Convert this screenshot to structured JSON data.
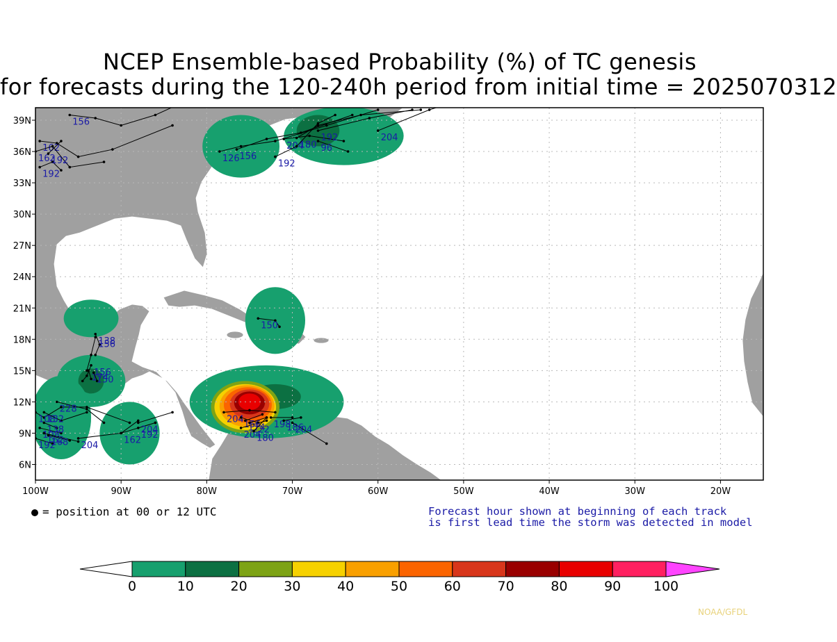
{
  "title": {
    "line1": "NCEP Ensemble-based Probability (%) of TC genesis",
    "line2": "for forecasts during the 120-240h period from initial time = 2025070312"
  },
  "map": {
    "lon_range": [
      -100,
      -15
    ],
    "lat_range": [
      4.5,
      40.2
    ],
    "lon_ticks": [
      "100W",
      "90W",
      "80W",
      "70W",
      "60W",
      "50W",
      "40W",
      "30W",
      "20W"
    ],
    "lat_ticks": [
      "6N",
      "9N",
      "12N",
      "15N",
      "18N",
      "21N",
      "24N",
      "27N",
      "30N",
      "33N",
      "36N",
      "39N"
    ],
    "colors": {
      "land": "#a0a0a0",
      "ocean": "#ffffff",
      "gridline": "#b8b8b8",
      "track": "#000000",
      "track_label": "#1a1aa6"
    }
  },
  "probability_regions": [
    {
      "level": 10,
      "color": "#17a06e",
      "lon": -76,
      "lat": 36.5,
      "rx": 4.5,
      "ry": 3
    },
    {
      "level": 10,
      "color": "#17a06e",
      "lon": -64,
      "lat": 37.5,
      "rx": 7,
      "ry": 2.8
    },
    {
      "level": 20,
      "color": "#0c7042",
      "lon": -67,
      "lat": 38,
      "rx": 2.5,
      "ry": 1.5
    },
    {
      "level": 10,
      "color": "#17a06e",
      "lon": -72,
      "lat": 19.8,
      "rx": 3.5,
      "ry": 3.2
    },
    {
      "level": 10,
      "color": "#17a06e",
      "lon": -93.5,
      "lat": 20,
      "rx": 3.2,
      "ry": 1.8
    },
    {
      "level": 10,
      "color": "#17a06e",
      "lon": -93.5,
      "lat": 14,
      "rx": 4,
      "ry": 2.5
    },
    {
      "level": 20,
      "color": "#0c7042",
      "lon": -93.5,
      "lat": 14,
      "rx": 1.5,
      "ry": 1.2
    },
    {
      "level": 10,
      "color": "#17a06e",
      "lon": -97,
      "lat": 10.5,
      "rx": 3.5,
      "ry": 4
    },
    {
      "level": 10,
      "color": "#17a06e",
      "lon": -89,
      "lat": 9,
      "rx": 3.5,
      "ry": 3
    },
    {
      "level": 10,
      "color": "#17a06e",
      "lon": -73,
      "lat": 12,
      "rx": 9,
      "ry": 3.5
    },
    {
      "level": 20,
      "color": "#0c7042",
      "lon": -72,
      "lat": 12.5,
      "rx": 3,
      "ry": 1.2
    },
    {
      "level": 30,
      "color": "#7da315",
      "lon": -75.5,
      "lat": 11.5,
      "rx": 4,
      "ry": 2.5
    },
    {
      "level": 40,
      "color": "#f6d100",
      "lon": -75.5,
      "lat": 11.5,
      "rx": 3.6,
      "ry": 2.2
    },
    {
      "level": 50,
      "color": "#f9a000",
      "lon": -75.3,
      "lat": 11.6,
      "rx": 3.2,
      "ry": 2
    },
    {
      "level": 60,
      "color": "#fb6400",
      "lon": -75.2,
      "lat": 11.7,
      "rx": 2.8,
      "ry": 1.7
    },
    {
      "level": 70,
      "color": "#d8361b",
      "lon": -75,
      "lat": 11.8,
      "rx": 2.3,
      "ry": 1.4
    },
    {
      "level": 80,
      "color": "#990000",
      "lon": -75,
      "lat": 11.9,
      "rx": 1.8,
      "ry": 1.1
    },
    {
      "level": 90,
      "color": "#e80000",
      "lon": -75,
      "lat": 12,
      "rx": 1.3,
      "ry": 0.8
    }
  ],
  "tracks": [
    {
      "label": "156",
      "points": [
        [
          -96,
          39.5
        ],
        [
          -93,
          39.2
        ],
        [
          -90,
          38.5
        ],
        [
          -86,
          39.5
        ],
        [
          -82,
          41
        ]
      ]
    },
    {
      "label": "162",
      "points": [
        [
          -99.5,
          37
        ],
        [
          -97.5,
          36.8
        ],
        [
          -95,
          35.5
        ],
        [
          -91,
          36.2
        ],
        [
          -84,
          38.5
        ]
      ]
    },
    {
      "label": "162",
      "points": [
        [
          -100,
          36
        ],
        [
          -98,
          36.5
        ],
        [
          -96,
          34.5
        ],
        [
          -92,
          35
        ]
      ]
    },
    {
      "label": "192",
      "points": [
        [
          -99.5,
          34.5
        ],
        [
          -98,
          35
        ],
        [
          -97,
          34.2
        ]
      ]
    },
    {
      "label": "192",
      "points": [
        [
          -98.5,
          35.8
        ],
        [
          -97,
          37
        ]
      ]
    },
    {
      "label": "126",
      "points": [
        [
          -78.5,
          36
        ],
        [
          -76,
          36.5
        ],
        [
          -72,
          37
        ],
        [
          -66,
          38.5
        ],
        [
          -60,
          40
        ]
      ]
    },
    {
      "label": "156",
      "points": [
        [
          -76.5,
          36.2
        ],
        [
          -73,
          37.2
        ],
        [
          -69,
          37.8
        ],
        [
          -63,
          39.5
        ]
      ]
    },
    {
      "label": "204",
      "points": [
        [
          -71,
          37.2
        ],
        [
          -68,
          37.5
        ],
        [
          -64,
          37
        ]
      ]
    },
    {
      "label": "180",
      "points": [
        [
          -69.5,
          37.3
        ],
        [
          -67,
          38.5
        ],
        [
          -62,
          39.5
        ],
        [
          -55,
          40
        ]
      ]
    },
    {
      "label": "96",
      "points": [
        [
          -67,
          37
        ],
        [
          -63.5,
          36
        ]
      ]
    },
    {
      "label": "192",
      "points": [
        [
          -72,
          35.5
        ],
        [
          -69.5,
          36.5
        ],
        [
          -67,
          38.7
        ],
        [
          -65,
          39.5
        ]
      ]
    },
    {
      "label": "192",
      "points": [
        [
          -67,
          38
        ],
        [
          -61,
          39.2
        ],
        [
          -56,
          40
        ]
      ]
    },
    {
      "label": "204",
      "points": [
        [
          -60,
          38
        ],
        [
          -54,
          40
        ],
        [
          -50,
          41
        ]
      ]
    },
    {
      "label": "150",
      "points": [
        [
          -74,
          20
        ],
        [
          -72,
          19.8
        ],
        [
          -71.5,
          19.2
        ]
      ]
    },
    {
      "label": "138",
      "points": [
        [
          -93,
          18.5
        ],
        [
          -92.5,
          17.5
        ],
        [
          -93,
          16.5
        ]
      ]
    },
    {
      "label": "156",
      "points": [
        [
          -93,
          18.2
        ],
        [
          -93.5,
          16.5
        ],
        [
          -94,
          15
        ]
      ]
    },
    {
      "label": "156",
      "points": [
        [
          -93.5,
          15.5
        ],
        [
          -94,
          14.5
        ],
        [
          -94.5,
          14
        ]
      ]
    },
    {
      "label": "174",
      "points": [
        [
          -93.8,
          15
        ],
        [
          -93.5,
          14.2
        ]
      ]
    },
    {
      "label": "150",
      "points": [
        [
          -93.2,
          14.8
        ],
        [
          -92.8,
          14
        ]
      ]
    },
    {
      "label": "108",
      "points": [
        [
          -100,
          11
        ],
        [
          -99,
          10.5
        ],
        [
          -97,
          11.5
        ],
        [
          -94,
          11.5
        ],
        [
          -89,
          10
        ]
      ]
    },
    {
      "label": "132",
      "points": [
        [
          -99,
          11
        ],
        [
          -97,
          10.2
        ],
        [
          -94,
          11
        ]
      ]
    },
    {
      "label": "228",
      "points": [
        [
          -97.5,
          12
        ],
        [
          -94,
          11.3
        ],
        [
          -92,
          10
        ]
      ]
    },
    {
      "label": "108",
      "points": [
        [
          -99.5,
          9.5
        ],
        [
          -97,
          9
        ]
      ]
    },
    {
      "label": "138",
      "points": [
        [
          -99,
          10
        ],
        [
          -97.5,
          9.5
        ]
      ]
    },
    {
      "label": "162",
      "points": [
        [
          -99,
          9
        ],
        [
          -95,
          8.2
        ]
      ]
    },
    {
      "label": "192",
      "points": [
        [
          -100,
          8.5
        ],
        [
          -98,
          8
        ]
      ]
    },
    {
      "label": "168",
      "points": [
        [
          -98.5,
          8.8
        ],
        [
          -96,
          8.3
        ]
      ]
    },
    {
      "label": "204",
      "points": [
        [
          -95,
          8.5
        ],
        [
          -90,
          9
        ],
        [
          -86,
          10
        ]
      ]
    },
    {
      "label": "192",
      "points": [
        [
          -88,
          9.5
        ],
        [
          -86,
          10
        ]
      ]
    },
    {
      "label": "162",
      "points": [
        [
          -90,
          9
        ],
        [
          -88,
          10.2
        ]
      ]
    },
    {
      "label": "204",
      "points": [
        [
          -88,
          10
        ],
        [
          -84,
          11
        ]
      ]
    },
    {
      "label": "204",
      "points": [
        [
          -78,
          11
        ],
        [
          -75,
          11.2
        ],
        [
          -72,
          11
        ]
      ]
    },
    {
      "label": "156",
      "points": [
        [
          -76,
          10.5
        ],
        [
          -74,
          10
        ]
      ]
    },
    {
      "label": "222",
      "points": [
        [
          -75,
          10
        ],
        [
          -73,
          10.5
        ]
      ]
    },
    {
      "label": "204",
      "points": [
        [
          -76,
          9.5
        ],
        [
          -73,
          10.2
        ]
      ]
    },
    {
      "label": "174",
      "points": [
        [
          -75.5,
          10.2
        ],
        [
          -73.5,
          10.8
        ]
      ]
    },
    {
      "label": "180",
      "points": [
        [
          -74.5,
          9.2
        ],
        [
          -73,
          10.5
        ]
      ]
    },
    {
      "label": "198",
      "points": [
        [
          -72.5,
          10.5
        ],
        [
          -70,
          10.5
        ]
      ]
    },
    {
      "label": "186",
      "points": [
        [
          -71,
          10.2
        ],
        [
          -69,
          10.5
        ]
      ]
    },
    {
      "label": "204",
      "points": [
        [
          -70,
          10
        ],
        [
          -66,
          8
        ]
      ]
    }
  ],
  "legend_dot_text": "= position at 00 or 12 UTC",
  "note": {
    "line1": "Forecast hour shown at beginning of each track",
    "line2": "is first lead time the storm was detected in model"
  },
  "colorbar": {
    "labels": [
      "0",
      "10",
      "20",
      "30",
      "40",
      "50",
      "60",
      "70",
      "80",
      "90",
      "100"
    ],
    "colors": [
      "#17a06e",
      "#0c7042",
      "#7da315",
      "#f6d100",
      "#f9a000",
      "#fb6400",
      "#d8361b",
      "#990000",
      "#e80000",
      "#ff2060"
    ],
    "low_arrow_color": "#ffffff",
    "high_arrow_color": "#ff44ff"
  },
  "credit": "NOAA/GFDL"
}
